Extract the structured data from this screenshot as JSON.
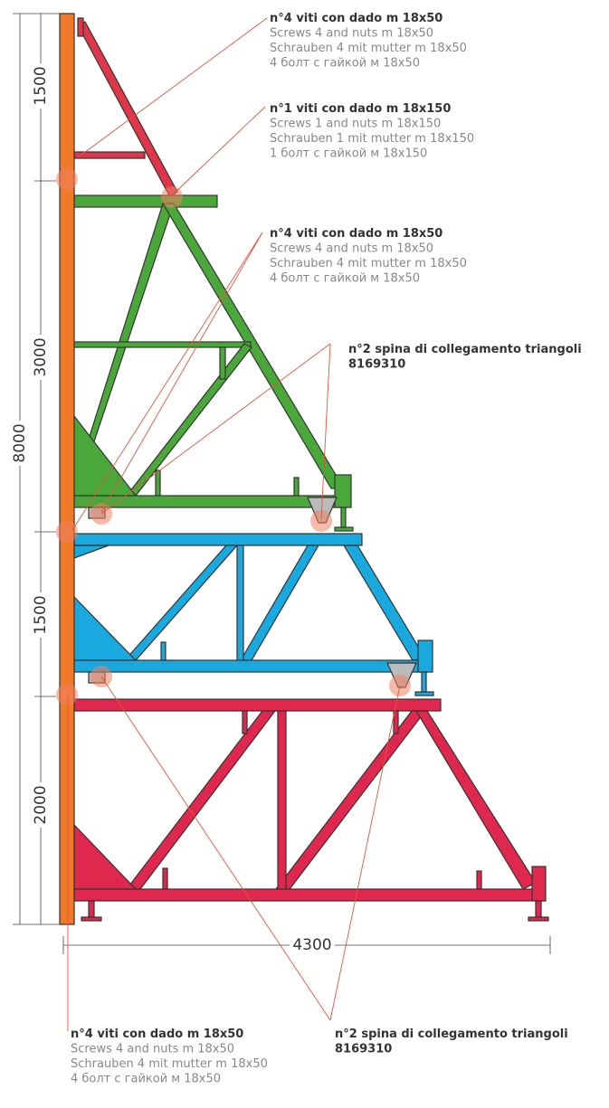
{
  "dimensions": {
    "vertical": [
      "1500",
      "3000",
      "1500",
      "2000"
    ],
    "total": "8000",
    "width": "4300"
  },
  "callouts": [
    {
      "lines": [
        "n°4 viti con dado m 18x50",
        "Screws 4 and nuts m 18x50",
        "Schrauben 4 mit mutter m 18x50",
        "4 болт с гайкой м 18x50"
      ]
    },
    {
      "lines": [
        "n°1 viti con dado m 18x150",
        "Screws 1 and nuts m 18x150",
        "Schrauben 1 mit mutter m 18x150",
        "1 болт с гайкой м 18x150"
      ]
    },
    {
      "lines": [
        "n°4 viti con dado m 18x50",
        "Screws 4 and nuts m 18x50",
        "Schrauben 4 mit mutter m 18x50",
        "4 болт с гайкой м 18x50"
      ]
    },
    {
      "lines": [
        "n°2 spina di collegamento triangoli",
        "8169310"
      ]
    },
    {
      "lines": [
        "n°4 viti con dado m 18x50",
        "Screws 4 and nuts m 18x50",
        "Schrauben 4 mit mutter m 18x50",
        "4 болт с гайкой м 18x50"
      ]
    },
    {
      "lines": [
        "n°2 spina di collegamento triangoli",
        "8169310"
      ]
    }
  ]
}
